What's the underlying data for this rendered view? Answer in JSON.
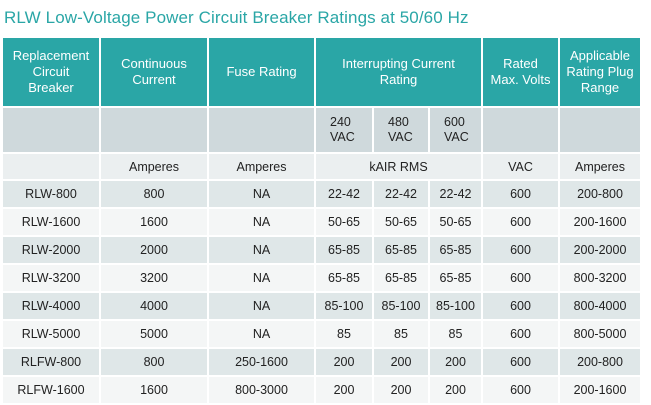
{
  "title": "RLW Low-Voltage Power Circuit Breaker Ratings at 50/60 Hz",
  "header": {
    "replacement": [
      "Replacement",
      "Circuit",
      "Breaker"
    ],
    "continuous": [
      "Continuous",
      "Current"
    ],
    "fuse": "Fuse Rating",
    "interrupting": [
      "Interrupting Current",
      "Rating"
    ],
    "rated": [
      "Rated",
      "Max. Volts"
    ],
    "plug": [
      "Applicable",
      "Rating Plug",
      "Range"
    ]
  },
  "voltages": [
    [
      "240",
      "VAC"
    ],
    [
      "480",
      "VAC"
    ],
    [
      "600",
      "VAC"
    ]
  ],
  "units": {
    "continuous": "Amperes",
    "fuse": "Amperes",
    "interrupting": "kAIR RMS",
    "rated": "VAC",
    "plug": "Amperes"
  },
  "rows": [
    [
      "RLW-800",
      "800",
      "NA",
      "22-42",
      "22-42",
      "22-42",
      "600",
      "200-800"
    ],
    [
      "RLW-1600",
      "1600",
      "NA",
      "50-65",
      "50-65",
      "50-65",
      "600",
      "200-1600"
    ],
    [
      "RLW-2000",
      "2000",
      "NA",
      "65-85",
      "65-85",
      "65-85",
      "600",
      "200-2000"
    ],
    [
      "RLW-3200",
      "3200",
      "NA",
      "65-85",
      "65-85",
      "65-85",
      "600",
      "800-3200"
    ],
    [
      "RLW-4000",
      "4000",
      "NA",
      "85-100",
      "85-100",
      "85-100",
      "600",
      "800-4000"
    ],
    [
      "RLW-5000",
      "5000",
      "NA",
      "85",
      "85",
      "85",
      "600",
      "800-5000"
    ],
    [
      "RLFW-800",
      "800",
      "250-1600",
      "200",
      "200",
      "200",
      "600",
      "200-800"
    ],
    [
      "RLFW-1600",
      "1600",
      "800-3000",
      "200",
      "200",
      "200",
      "600",
      "200-1600"
    ]
  ],
  "colors": {
    "header_bg": "#2aa6a6",
    "title": "#2aa6a6",
    "voltage_row_bg": "#cfd9dc",
    "units_row_bg": "#ebeff0",
    "row_odd_bg": "#dfe7e8",
    "row_even_bg": "#f4f6f6"
  }
}
